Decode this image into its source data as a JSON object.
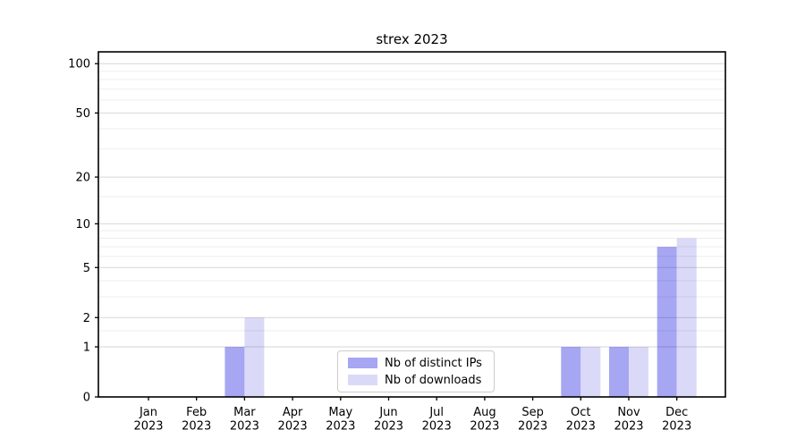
{
  "chart_data": {
    "type": "bar",
    "title": "strex 2023",
    "categories": [
      {
        "month": "Jan",
        "year": "2023"
      },
      {
        "month": "Feb",
        "year": "2023"
      },
      {
        "month": "Mar",
        "year": "2023"
      },
      {
        "month": "Apr",
        "year": "2023"
      },
      {
        "month": "May",
        "year": "2023"
      },
      {
        "month": "Jun",
        "year": "2023"
      },
      {
        "month": "Jul",
        "year": "2023"
      },
      {
        "month": "Aug",
        "year": "2023"
      },
      {
        "month": "Sep",
        "year": "2023"
      },
      {
        "month": "Oct",
        "year": "2023"
      },
      {
        "month": "Nov",
        "year": "2023"
      },
      {
        "month": "Dec",
        "year": "2023"
      }
    ],
    "series": [
      {
        "name": "Nb of distinct IPs",
        "color": "#a6a6f3",
        "values": [
          0,
          0,
          1,
          0,
          0,
          0,
          0,
          0,
          0,
          1,
          1,
          7
        ]
      },
      {
        "name": "Nb of downloads",
        "color": "#dadaf8",
        "values": [
          0,
          0,
          2,
          0,
          0,
          0,
          0,
          0,
          0,
          1,
          1,
          8
        ]
      }
    ],
    "yscale": "log10(1+y)",
    "ylim": [
      0,
      118
    ],
    "yticks_major": [
      0,
      1,
      2,
      5,
      10,
      20,
      50,
      100
    ],
    "yticks_minor": [
      1.5,
      3,
      4,
      6,
      7,
      8,
      9,
      15,
      30,
      40,
      60,
      70,
      80,
      90
    ],
    "grid": "on",
    "grid_above_bars": true,
    "legend_position": "lower center",
    "colors": {
      "spine": "#000000",
      "background": "#ffffff",
      "grid_major": "#000000",
      "grid_major_opacity": 0.16,
      "grid_minor": "#000000",
      "grid_minor_opacity": 0.07,
      "tick_text": "#000000"
    }
  }
}
